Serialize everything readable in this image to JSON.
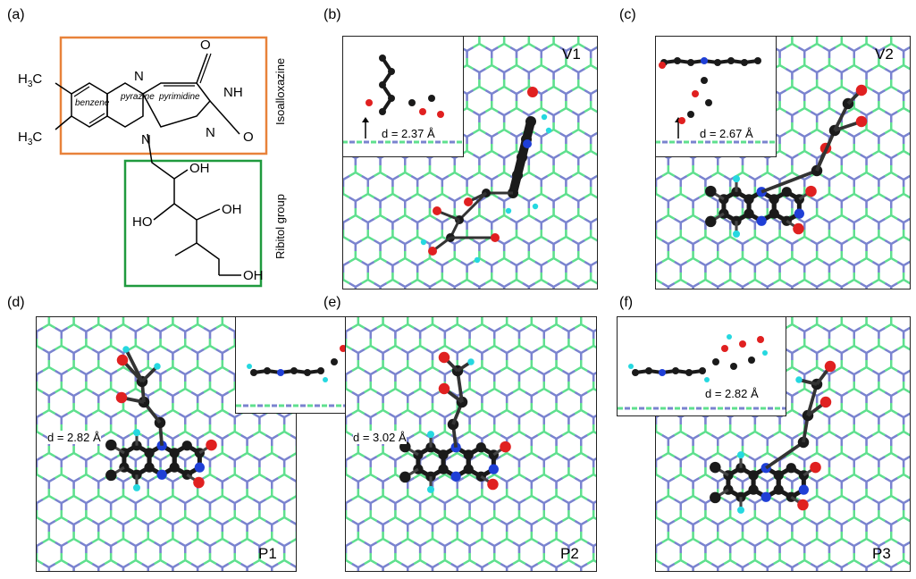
{
  "panel_labels": {
    "a": "(a)",
    "b": "(b)",
    "c": "(c)",
    "d": "(d)",
    "e": "(e)",
    "f": "(f)"
  },
  "structure": {
    "box1_label": "Isoalloxazine",
    "box2_label": "Ribitol group",
    "ring_benzene": "benzene",
    "ring_pyrazine": "pyrazine",
    "ring_pyrimidine": "pyrimidine",
    "h3c_top": "H3C",
    "h3c_bottom": "H3C",
    "n_top": "N",
    "n_left": "N",
    "n_right": "N",
    "nh": "NH",
    "o_top": "O",
    "o_right": "O",
    "oh1": "OH",
    "ho2": "HO",
    "oh3": "OH",
    "oh4": "OH",
    "box1_color": "#e8823a",
    "box2_color": "#1f9a3e"
  },
  "panels": {
    "b": {
      "tag": "V1",
      "distance": "d = 2.37 Å"
    },
    "c": {
      "tag": "V2",
      "distance": "d = 2.67 Å"
    },
    "d": {
      "tag": "P1",
      "distance": "d = 2.82 Å"
    },
    "e": {
      "tag": "P2",
      "distance": "d = 3.02 Å"
    },
    "f": {
      "tag": "P3",
      "distance": "d = 2.82 Å"
    }
  },
  "colors": {
    "boron": "#7a83cf",
    "nitrogen_lattice": "#5fe08e",
    "carbon": "#1a1a1a",
    "oxygen": "#e02020",
    "nitrogen_atom": "#1f3fd6",
    "hydrogen": "#25d8e0"
  }
}
